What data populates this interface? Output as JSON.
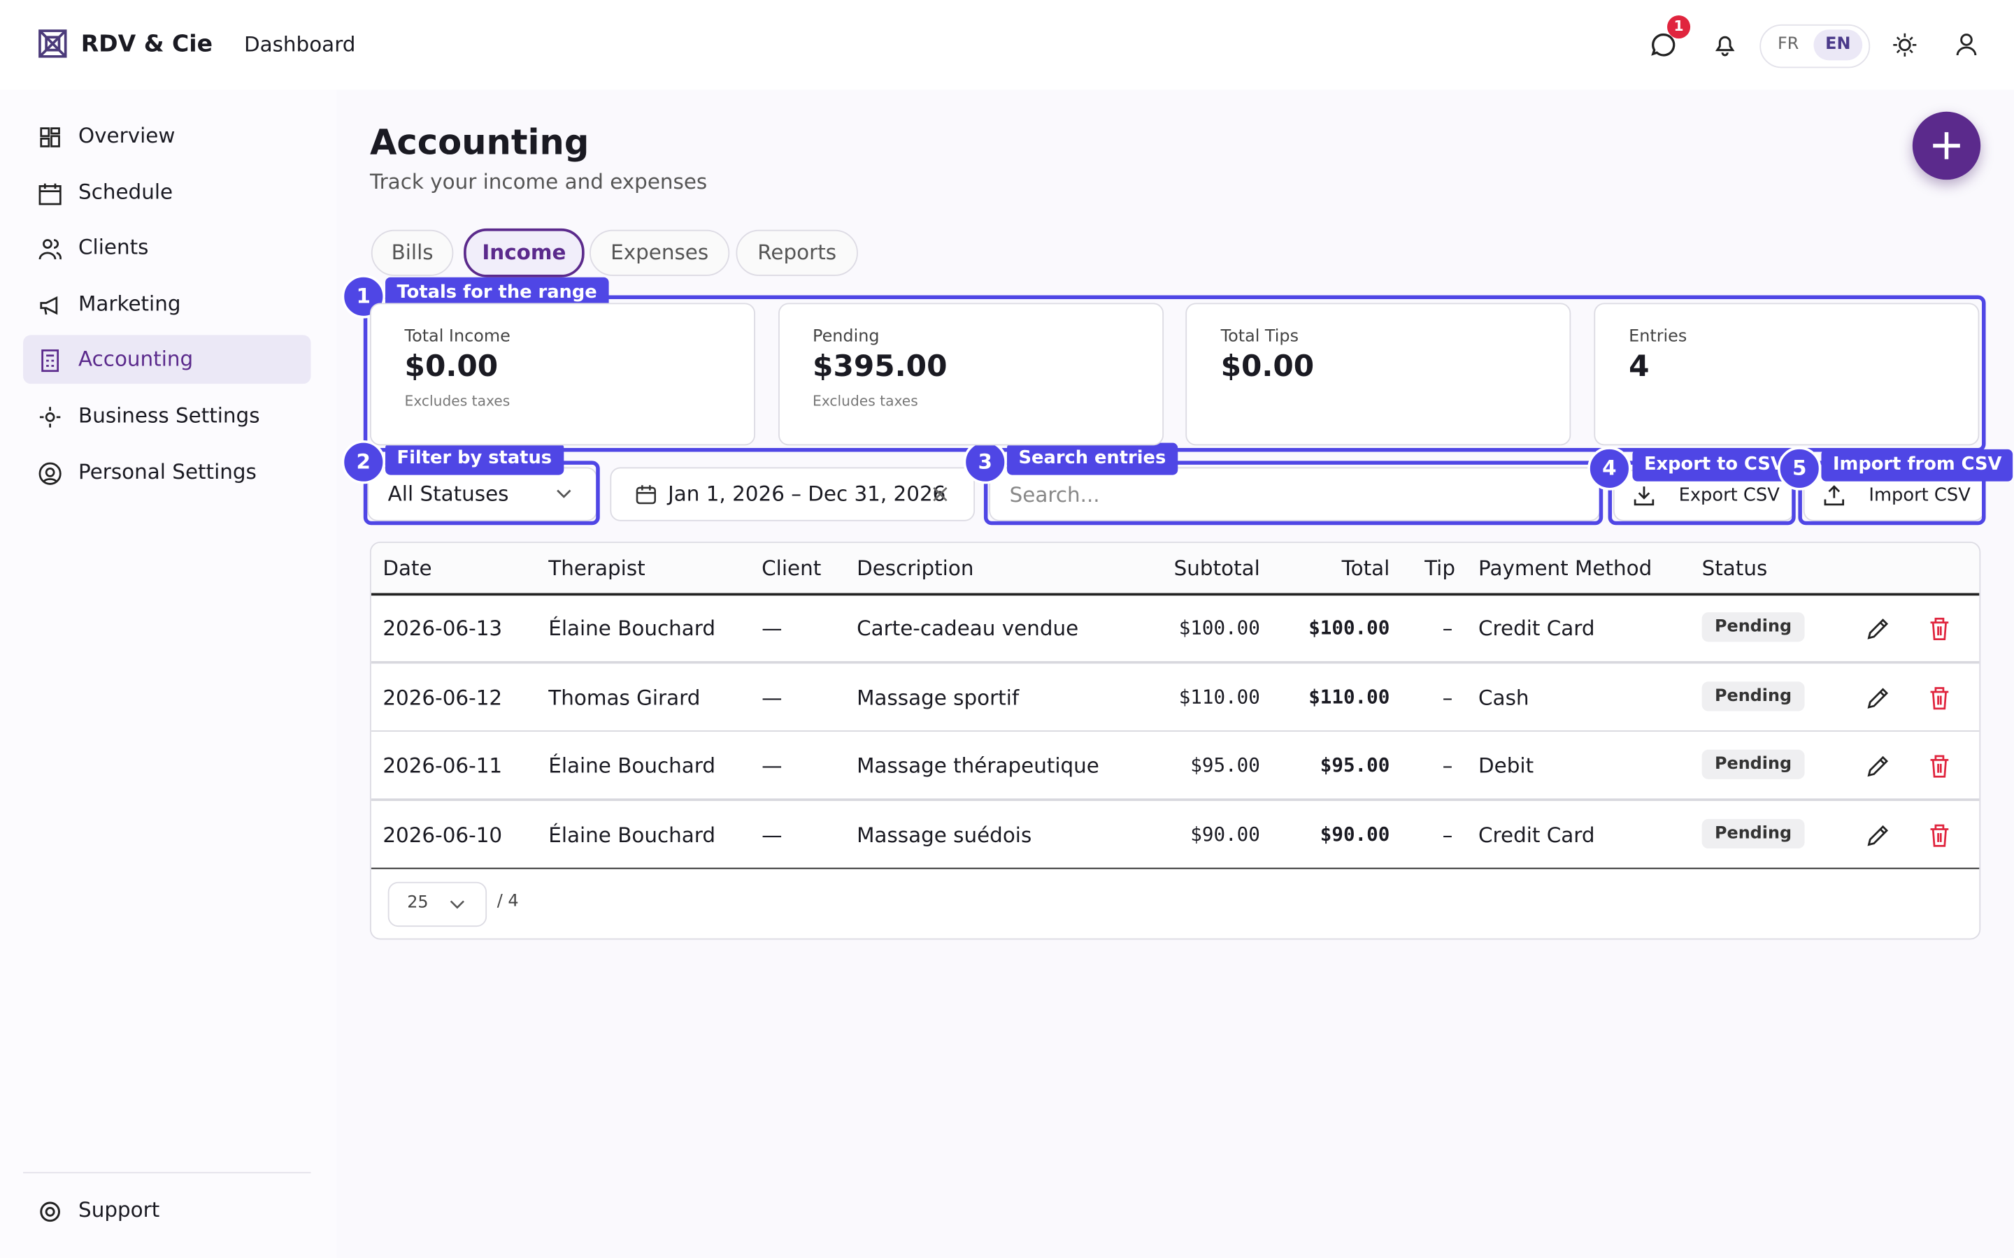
{
  "header": {
    "brand": "RDV & Cie",
    "page": "Dashboard",
    "badge": "1",
    "languages": [
      "FR",
      "EN"
    ]
  },
  "sidebar": {
    "items": [
      "Overview",
      "Schedule",
      "Clients",
      "Marketing",
      "Accounting",
      "Business Settings",
      "Personal Settings"
    ],
    "support": "Support"
  },
  "main": {
    "title": "Accounting",
    "subtitle": "Track your income and expenses",
    "tabs": [
      "Bills",
      "Income",
      "Expenses",
      "Reports"
    ]
  },
  "stats": [
    {
      "label": "Total Income",
      "value": "$0.00",
      "note": "Excludes taxes"
    },
    {
      "label": "Pending",
      "value": "$395.00",
      "note": "Excludes taxes"
    },
    {
      "label": "Total Tips",
      "value": "$0.00"
    },
    {
      "label": "Entries",
      "value": "4"
    }
  ],
  "filters": {
    "status": "All Statuses",
    "date_range": "Jan 1, 2026 – Dec 31, 2026",
    "search_placeholder": "Search...",
    "export": "Export CSV",
    "import": "Import CSV"
  },
  "annotations": [
    {
      "number": "1",
      "label": "Totals for the range"
    },
    {
      "number": "2",
      "label": "Filter by status"
    },
    {
      "number": "3",
      "label": "Search entries"
    },
    {
      "number": "4",
      "label": "Export to CSV"
    },
    {
      "number": "5",
      "label": "Import from CSV"
    }
  ],
  "table": {
    "columns": [
      "Date",
      "Therapist",
      "Client",
      "Description",
      "Subtotal",
      "Total",
      "Tip",
      "Payment Method",
      "Status"
    ],
    "rows": [
      [
        "2026-06-13",
        "Élaine Bouchard",
        "—",
        "Carte-cadeau vendue",
        "$100.00",
        "$100.00",
        "–",
        "Credit Card",
        "Pending"
      ],
      [
        "2026-06-12",
        "Thomas Girard",
        "—",
        "Massage sportif",
        "$110.00",
        "$110.00",
        "–",
        "Cash",
        "Pending"
      ],
      [
        "2026-06-11",
        "Élaine Bouchard",
        "—",
        "Massage thérapeutique",
        "$95.00",
        "$95.00",
        "–",
        "Debit",
        "Pending"
      ],
      [
        "2026-06-10",
        "Élaine Bouchard",
        "—",
        "Massage suédois",
        "$90.00",
        "$90.00",
        "–",
        "Credit Card",
        "Pending"
      ]
    ]
  },
  "pagination": {
    "page_size": "25",
    "total": "/ 4"
  }
}
